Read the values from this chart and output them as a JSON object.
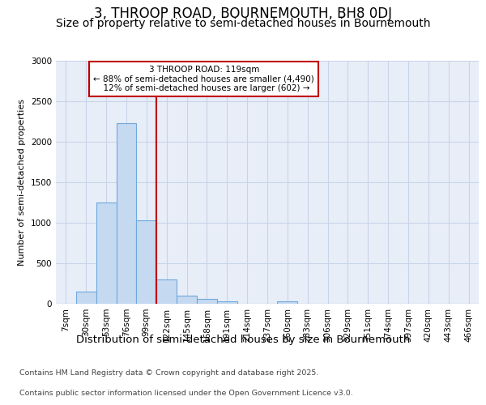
{
  "title1": "3, THROOP ROAD, BOURNEMOUTH, BH8 0DJ",
  "title2": "Size of property relative to semi-detached houses in Bournemouth",
  "xlabel": "Distribution of semi-detached houses by size in Bournemouth",
  "ylabel": "Number of semi-detached properties",
  "footer1": "Contains HM Land Registry data © Crown copyright and database right 2025.",
  "footer2": "Contains public sector information licensed under the Open Government Licence v3.0.",
  "bar_labels": [
    "7sqm",
    "30sqm",
    "53sqm",
    "76sqm",
    "99sqm",
    "122sqm",
    "145sqm",
    "168sqm",
    "191sqm",
    "214sqm",
    "237sqm",
    "260sqm",
    "283sqm",
    "306sqm",
    "329sqm",
    "351sqm",
    "374sqm",
    "397sqm",
    "420sqm",
    "443sqm",
    "466sqm"
  ],
  "bar_values": [
    0,
    150,
    1250,
    2230,
    1030,
    300,
    105,
    60,
    35,
    0,
    0,
    30,
    0,
    0,
    0,
    0,
    0,
    0,
    0,
    0,
    0
  ],
  "bar_color": "#c5d9f1",
  "bar_edge_color": "#6fa8dc",
  "grid_color": "#c8d4e8",
  "bg_color": "#e8eef8",
  "ylim": [
    0,
    3000
  ],
  "yticks": [
    0,
    500,
    1000,
    1500,
    2000,
    2500,
    3000
  ],
  "property_label": "3 THROOP ROAD: 119sqm",
  "pct_smaller": 88,
  "count_smaller": 4490,
  "pct_larger": 12,
  "count_larger": 602,
  "vline_color": "#c00000",
  "annotation_box_color": "#c00000",
  "title1_fontsize": 12,
  "title2_fontsize": 10,
  "xlabel_fontsize": 9.5,
  "ylabel_fontsize": 8,
  "tick_fontsize": 7.5,
  "footer_fontsize": 6.8,
  "annotation_fontsize": 7.5
}
